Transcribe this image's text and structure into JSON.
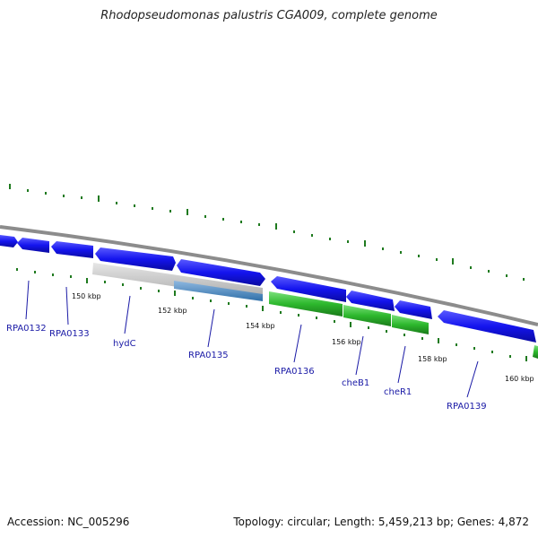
{
  "title": "Rhodopseudomonas palustris CGA009, complete genome",
  "footer": {
    "accession": "Accession: NC_005296",
    "summary": "Topology: circular; Length: 5,459,213 bp; Genes: 4,872"
  },
  "colors": {
    "cds": "#1414ee",
    "gray_feature": "#c8c8c8",
    "steel_feature": "#4a8ac4",
    "green_feature": "#2db82d",
    "backbone": "#8c8c8c",
    "gene_label": "#1a1aa6",
    "tick_green": "#1f7a1f"
  },
  "tick_labels": [
    "150 kbp",
    "152 kbp",
    "154 kbp",
    "156 kbp",
    "158 kbp",
    "160 kbp"
  ],
  "gene_labels": [
    "RPA0132",
    "RPA0133",
    "hydC",
    "RPA0135",
    "RPA0136",
    "cheB1",
    "cheR1",
    "RPA0139"
  ]
}
